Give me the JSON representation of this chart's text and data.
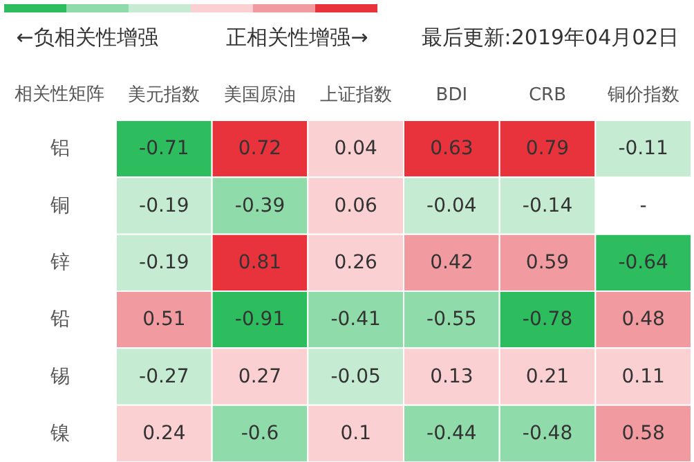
{
  "chart_data": {
    "type": "heatmap",
    "ylabel": "相关性矩阵",
    "annotations": [
      "←负相关性增强",
      "正相关性增强→",
      "最后更新:2019年04月02日"
    ],
    "categories": [
      "美元指数",
      "美国原油",
      "上证指数",
      "BDI",
      "CRB",
      "铜价指数"
    ],
    "y_categories": [
      "铝",
      "铜",
      "锌",
      "铅",
      "锡",
      "镍"
    ],
    "cells": [
      [
        -0.71,
        0.72,
        0.04,
        0.63,
        0.79,
        -0.11
      ],
      [
        -0.19,
        -0.39,
        0.06,
        -0.04,
        -0.14,
        null
      ],
      [
        -0.19,
        0.81,
        0.26,
        0.42,
        0.59,
        -0.64
      ],
      [
        0.51,
        -0.91,
        -0.41,
        -0.55,
        -0.78,
        0.48
      ],
      [
        -0.27,
        0.27,
        -0.05,
        0.13,
        0.21,
        0.11
      ],
      [
        0.24,
        -0.6,
        0.1,
        -0.44,
        -0.48,
        0.58
      ]
    ],
    "cell_labels": [
      [
        "-0.71",
        "0.72",
        "0.04",
        "0.63",
        "0.79",
        "-0.11"
      ],
      [
        "-0.19",
        "-0.39",
        "0.06",
        "-0.04",
        "-0.14",
        "-"
      ],
      [
        "-0.19",
        "0.81",
        "0.26",
        "0.42",
        "0.59",
        "-0.64"
      ],
      [
        "0.51",
        "-0.91",
        "-0.41",
        "-0.55",
        "-0.78",
        "0.48"
      ],
      [
        "-0.27",
        "0.27",
        "-0.05",
        "0.13",
        "0.21",
        "0.11"
      ],
      [
        "0.24",
        "-0.6",
        "0.1",
        "-0.44",
        "-0.48",
        "0.58"
      ]
    ],
    "colors": [
      "#2dbd5e",
      "#8fdcaa",
      "#c5ecd2",
      "#fbd0d3",
      "#f19aa0",
      "#e8323c"
    ]
  }
}
